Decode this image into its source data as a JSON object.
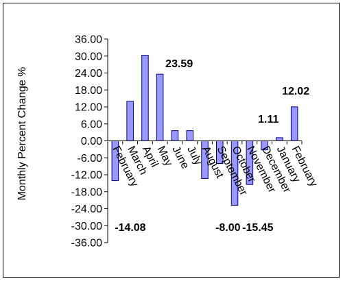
{
  "chart_data": {
    "type": "bar",
    "title": "",
    "xlabel": "",
    "ylabel": "Monthly Percent Change %",
    "ylim": [
      -36,
      36
    ],
    "yticks": [
      "36.00",
      "30.00",
      "24.00",
      "18.00",
      "12.00",
      "6.00",
      "0.00",
      "-6.00",
      "-12.00",
      "-18.00",
      "-24.00",
      "-30.00",
      "-36.00"
    ],
    "categories": [
      "February",
      "March",
      "April",
      "May",
      "June",
      "July",
      "August",
      "September",
      "October",
      "November",
      "December",
      "January",
      "February"
    ],
    "values": [
      -14.08,
      14.0,
      30.3,
      23.59,
      3.6,
      3.6,
      -13.3,
      -8.0,
      -22.8,
      -15.45,
      -3.2,
      1.11,
      12.02
    ],
    "data_labels": [
      {
        "index": 0,
        "text": "-14.08"
      },
      {
        "index": 3,
        "text": "23.59"
      },
      {
        "index": 7,
        "text": "-8.00"
      },
      {
        "index": 9,
        "text": "-15.45"
      },
      {
        "index": 11,
        "text": "1.11"
      },
      {
        "index": 12,
        "text": "12.02"
      }
    ],
    "bar_color": "#9999FF",
    "bar_border": "#000080",
    "grid": false,
    "legend": "none"
  }
}
